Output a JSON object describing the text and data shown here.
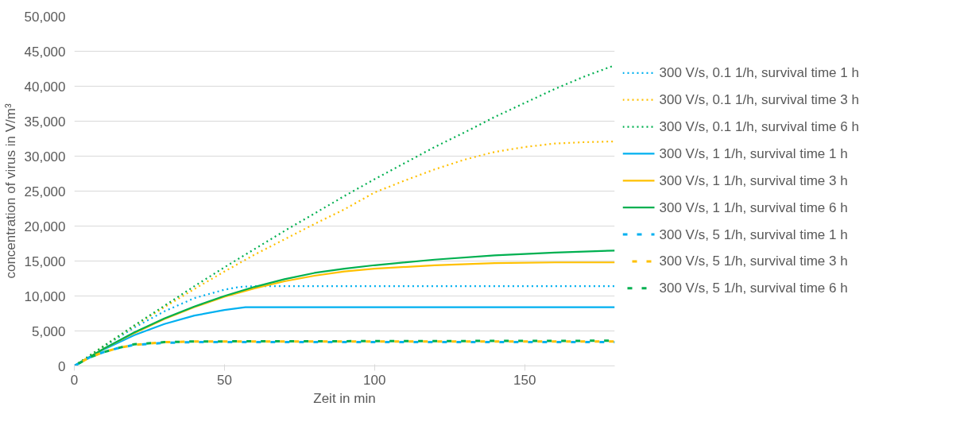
{
  "chart_data": {
    "type": "line",
    "xlabel": "Zeit in min",
    "ylabel": "concentration of virus in V/m³",
    "xlim": [
      0,
      180
    ],
    "xticks": [
      0,
      50,
      100,
      150
    ],
    "ylim": [
      0,
      50000
    ],
    "yticks": [
      {
        "value": 0,
        "label": "0"
      },
      {
        "value": 5000,
        "label": "5,000"
      },
      {
        "value": 10000,
        "label": "10,000"
      },
      {
        "value": 15000,
        "label": "15,000"
      },
      {
        "value": 20000,
        "label": "20,000"
      },
      {
        "value": 25000,
        "label": "25,000"
      },
      {
        "value": 30000,
        "label": "30,000"
      },
      {
        "value": 35000,
        "label": "35,000"
      },
      {
        "value": 40000,
        "label": "40,000"
      },
      {
        "value": 45000,
        "label": "45,000"
      },
      {
        "value": 50000,
        "label": "50,000"
      }
    ],
    "grid": "y",
    "legend": "right",
    "series": [
      {
        "name": "300 V/s, 0.1 1/h, survival time 1 h",
        "color": "#00b0f0",
        "line_style": "dotted",
        "x": [
          0,
          10,
          20,
          30,
          40,
          50,
          55,
          60,
          180
        ],
        "values": [
          0,
          2800,
          5500,
          7800,
          9700,
          10900,
          11300,
          11400,
          11400
        ]
      },
      {
        "name": "300 V/s, 0.1 1/h, survival time 3 h",
        "color": "#ffc000",
        "line_style": "dotted",
        "x": [
          0,
          10,
          20,
          30,
          40,
          50,
          60,
          70,
          80,
          90,
          100,
          110,
          120,
          130,
          140,
          150,
          160,
          170,
          180
        ],
        "values": [
          0,
          2900,
          5700,
          8400,
          11000,
          13500,
          15900,
          18100,
          20300,
          22400,
          24800,
          26500,
          28100,
          29500,
          30600,
          31300,
          31800,
          32000,
          32100
        ]
      },
      {
        "name": "300 V/s, 0.1 1/h, survival time 6 h",
        "color": "#00b050",
        "line_style": "dotted",
        "x": [
          0,
          10,
          20,
          30,
          40,
          50,
          60,
          70,
          80,
          90,
          100,
          110,
          120,
          130,
          140,
          150,
          160,
          170,
          180
        ],
        "values": [
          0,
          2900,
          5800,
          8600,
          11400,
          14100,
          16700,
          19300,
          21800,
          24300,
          26700,
          29000,
          31300,
          33400,
          35600,
          37600,
          39600,
          41400,
          43000
        ]
      },
      {
        "name": "300 V/s, 1 1/h, survival time 1 h",
        "color": "#00b0f0",
        "line_style": "solid",
        "x": [
          0,
          10,
          20,
          30,
          40,
          50,
          57,
          180
        ],
        "values": [
          0,
          2400,
          4400,
          6000,
          7200,
          8000,
          8400,
          8400
        ]
      },
      {
        "name": "300 V/s, 1 1/h, survival time 3 h",
        "color": "#ffc000",
        "line_style": "solid",
        "x": [
          0,
          10,
          20,
          30,
          40,
          50,
          60,
          70,
          80,
          90,
          100,
          120,
          140,
          160,
          180
        ],
        "values": [
          0,
          2500,
          4700,
          6700,
          8400,
          9900,
          11100,
          12100,
          12900,
          13500,
          13900,
          14400,
          14700,
          14800,
          14800
        ]
      },
      {
        "name": "300 V/s, 1 1/h, survival time 6 h",
        "color": "#00b050",
        "line_style": "solid",
        "x": [
          0,
          10,
          20,
          30,
          40,
          50,
          60,
          70,
          80,
          90,
          100,
          120,
          140,
          160,
          180
        ],
        "values": [
          0,
          2500,
          4800,
          6800,
          8500,
          10000,
          11300,
          12400,
          13300,
          13900,
          14400,
          15200,
          15800,
          16200,
          16500
        ]
      },
      {
        "name": "300 V/s, 5 1/h, survival time 1 h",
        "color": "#00b0f0",
        "line_style": "dashed",
        "x": [
          0,
          5,
          10,
          15,
          20,
          30,
          40,
          180
        ],
        "values": [
          0,
          1200,
          2000,
          2600,
          3000,
          3300,
          3400,
          3400
        ]
      },
      {
        "name": "300 V/s, 5 1/h, survival time 3 h",
        "color": "#ffc000",
        "line_style": "dashed",
        "x": [
          0,
          5,
          10,
          15,
          20,
          30,
          40,
          180
        ],
        "values": [
          0,
          1200,
          2000,
          2600,
          3000,
          3400,
          3500,
          3500
        ]
      },
      {
        "name": "300 V/s, 5 1/h, survival time 6 h",
        "color": "#00b050",
        "line_style": "dashed",
        "x": [
          0,
          5,
          10,
          15,
          20,
          30,
          40,
          180
        ],
        "values": [
          0,
          1200,
          2000,
          2600,
          3100,
          3400,
          3500,
          3600
        ]
      }
    ]
  }
}
